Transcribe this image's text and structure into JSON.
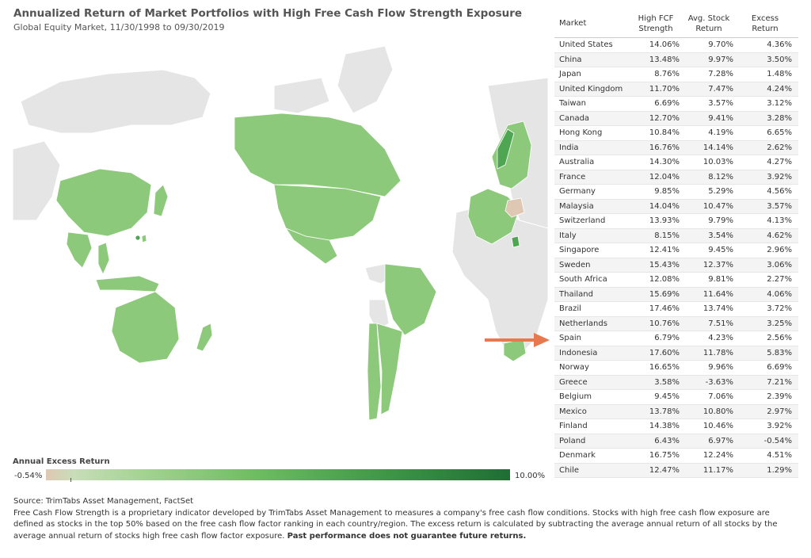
{
  "header": {
    "title": "Annualized Return of Market Portfolios with High Free Cash Flow Strength Exposure",
    "subtitle": "Global Equity Market, 11/30/1998 to 09/30/2019"
  },
  "legend": {
    "title": "Annual Excess Return",
    "min_label": "-0.54%",
    "max_label": "10.00%"
  },
  "table": {
    "headers": [
      "Market",
      "High FCF Strength",
      "Avg. Stock Return",
      "Excess Return"
    ],
    "rows": [
      [
        "United States",
        "14.06%",
        "9.70%",
        "4.36%"
      ],
      [
        "China",
        "13.48%",
        "9.97%",
        "3.50%"
      ],
      [
        "Japan",
        "8.76%",
        "7.28%",
        "1.48%"
      ],
      [
        "United Kingdom",
        "11.70%",
        "7.47%",
        "4.24%"
      ],
      [
        "Taiwan",
        "6.69%",
        "3.57%",
        "3.12%"
      ],
      [
        "Canada",
        "12.70%",
        "9.41%",
        "3.28%"
      ],
      [
        "Hong Kong",
        "10.84%",
        "4.19%",
        "6.65%"
      ],
      [
        "India",
        "16.76%",
        "14.14%",
        "2.62%"
      ],
      [
        "Australia",
        "14.30%",
        "10.03%",
        "4.27%"
      ],
      [
        "France",
        "12.04%",
        "8.12%",
        "3.92%"
      ],
      [
        "Germany",
        "9.85%",
        "5.29%",
        "4.56%"
      ],
      [
        "Malaysia",
        "14.04%",
        "10.47%",
        "3.57%"
      ],
      [
        "Switzerland",
        "13.93%",
        "9.79%",
        "4.13%"
      ],
      [
        "Italy",
        "8.15%",
        "3.54%",
        "4.62%"
      ],
      [
        "Singapore",
        "12.41%",
        "9.45%",
        "2.96%"
      ],
      [
        "Sweden",
        "15.43%",
        "12.37%",
        "3.06%"
      ],
      [
        "South Africa",
        "12.08%",
        "9.81%",
        "2.27%"
      ],
      [
        "Thailand",
        "15.69%",
        "11.64%",
        "4.06%"
      ],
      [
        "Brazil",
        "17.46%",
        "13.74%",
        "3.72%"
      ],
      [
        "Netherlands",
        "10.76%",
        "7.51%",
        "3.25%"
      ],
      [
        "Spain",
        "6.79%",
        "4.23%",
        "2.56%"
      ],
      [
        "Indonesia",
        "17.60%",
        "11.78%",
        "5.83%"
      ],
      [
        "Norway",
        "16.65%",
        "9.96%",
        "6.69%"
      ],
      [
        "Greece",
        "3.58%",
        "-3.63%",
        "7.21%"
      ],
      [
        "Belgium",
        "9.45%",
        "7.06%",
        "2.39%"
      ],
      [
        "Mexico",
        "13.78%",
        "10.80%",
        "2.97%"
      ],
      [
        "Finland",
        "14.38%",
        "10.46%",
        "3.92%"
      ],
      [
        "Poland",
        "6.43%",
        "6.97%",
        "-0.54%"
      ],
      [
        "Denmark",
        "16.75%",
        "12.24%",
        "4.51%"
      ],
      [
        "Chile",
        "12.47%",
        "11.17%",
        "1.29%"
      ]
    ]
  },
  "footer": {
    "source": "Source: TrimTabs Asset Management, FactSet",
    "description": "Free Cash Flow Strength is a proprietary indicator developed by TrimTabs Asset Management to measures a company's free cash flow conditions. Stocks with high free cash flow exposure are defined as stocks in the top 50% based on the free cash flow factor ranking in each country/region. The excess return is calculated by subtracting the average annual return of all stocks by the average annual return of stocks high free cash flow factor exposure.",
    "disclaimer": "Past performance does not guarantee future returns."
  },
  "chart_data": {
    "type": "table",
    "map_type": "choropleth",
    "color_metric": "Annual Excess Return",
    "color_range": [
      -0.54,
      10.0
    ],
    "colors": {
      "low": "#dfc8b3",
      "mid": "#a6d493",
      "high": "#1f6e35",
      "no_data": "#e6e6e6",
      "arrow": "#e8794f"
    },
    "highlighted_market": "Spain"
  }
}
